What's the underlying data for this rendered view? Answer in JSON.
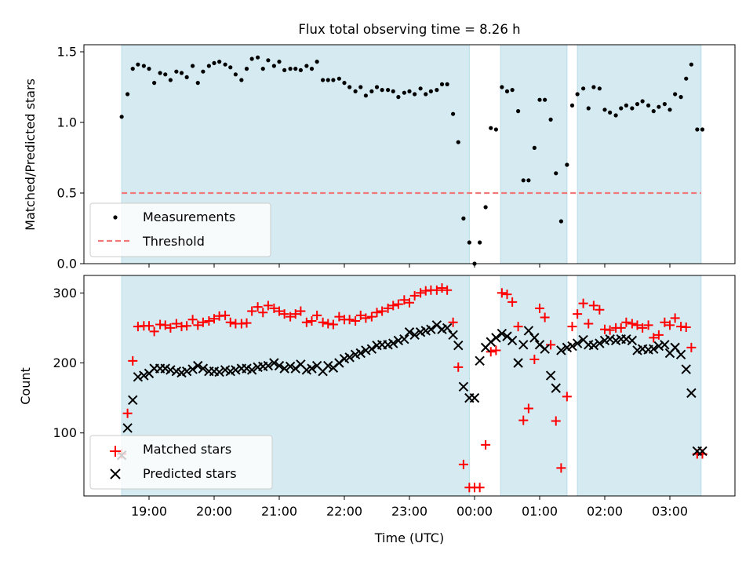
{
  "chart_data": [
    {
      "type": "scatter",
      "title": "Flux total observing time = 8.26 h",
      "ylabel": "Matched/Predicted stars",
      "ylim": [
        0,
        1.55
      ],
      "yticks": [
        0.0,
        0.5,
        1.0,
        1.5
      ],
      "ytick_labels": [
        "0.0",
        "0.5",
        "1.0",
        "1.5"
      ],
      "shaded_intervals_hours": [
        [
          18.58,
          23.92
        ],
        [
          24.4,
          25.42
        ],
        [
          25.58,
          27.48
        ]
      ],
      "threshold": {
        "name": "Threshold",
        "value": 0.5,
        "color": "#f07878"
      },
      "legend": [
        "Measurements",
        "Threshold"
      ],
      "legend_position": "lower-left",
      "series": [
        {
          "name": "Measurements",
          "color": "#000000",
          "marker": "dot",
          "x": [
            18.58,
            18.67,
            18.75,
            18.83,
            18.92,
            19.0,
            19.08,
            19.17,
            19.25,
            19.33,
            19.42,
            19.5,
            19.58,
            19.67,
            19.75,
            19.83,
            19.92,
            20.0,
            20.08,
            20.17,
            20.25,
            20.33,
            20.42,
            20.5,
            20.58,
            20.67,
            20.75,
            20.83,
            20.92,
            21.0,
            21.08,
            21.17,
            21.25,
            21.33,
            21.42,
            21.5,
            21.58,
            21.67,
            21.75,
            21.83,
            21.92,
            22.0,
            22.08,
            22.17,
            22.25,
            22.33,
            22.42,
            22.5,
            22.58,
            22.67,
            22.75,
            22.83,
            22.92,
            23.0,
            23.08,
            23.17,
            23.25,
            23.33,
            23.42,
            23.5,
            23.58,
            23.67,
            23.75,
            23.83,
            23.92,
            24.0,
            24.08,
            24.17,
            24.25,
            24.33,
            24.42,
            24.5,
            24.58,
            24.67,
            24.75,
            24.83,
            24.92,
            25.0,
            25.08,
            25.17,
            25.25,
            25.33,
            25.42,
            25.5,
            25.58,
            25.67,
            25.75,
            25.83,
            25.92,
            26.0,
            26.08,
            26.17,
            26.25,
            26.33,
            26.42,
            26.5,
            26.58,
            26.67,
            26.75,
            26.83,
            26.92,
            27.0,
            27.08,
            27.17,
            27.25,
            27.33,
            27.42,
            27.5
          ],
          "y": [
            1.04,
            1.2,
            1.38,
            1.41,
            1.4,
            1.38,
            1.28,
            1.35,
            1.34,
            1.3,
            1.36,
            1.35,
            1.32,
            1.4,
            1.28,
            1.36,
            1.4,
            1.42,
            1.43,
            1.41,
            1.39,
            1.34,
            1.3,
            1.38,
            1.45,
            1.46,
            1.38,
            1.44,
            1.4,
            1.43,
            1.37,
            1.38,
            1.38,
            1.37,
            1.4,
            1.38,
            1.43,
            1.3,
            1.3,
            1.3,
            1.31,
            1.28,
            1.25,
            1.22,
            1.25,
            1.19,
            1.22,
            1.25,
            1.23,
            1.23,
            1.22,
            1.18,
            1.21,
            1.22,
            1.2,
            1.24,
            1.2,
            1.22,
            1.23,
            1.27,
            1.27,
            1.06,
            0.86,
            0.32,
            0.15,
            0.0,
            0.15,
            0.4,
            0.96,
            0.95,
            1.25,
            1.22,
            1.23,
            1.08,
            0.59,
            0.59,
            0.82,
            1.16,
            1.16,
            1.02,
            0.64,
            0.3,
            0.7,
            1.12,
            1.2,
            1.24,
            1.1,
            1.25,
            1.24,
            1.09,
            1.07,
            1.05,
            1.1,
            1.12,
            1.1,
            1.13,
            1.15,
            1.12,
            1.08,
            1.11,
            1.13,
            1.09,
            1.2,
            1.18,
            1.31,
            1.41,
            0.95,
            0.95
          ]
        }
      ]
    },
    {
      "type": "scatter",
      "xlabel": "Time (UTC)",
      "ylabel": "Count",
      "xlim": [
        18.0,
        28.0
      ],
      "xticks_hours": [
        19,
        20,
        21,
        22,
        23,
        24,
        25,
        26,
        27
      ],
      "xtick_labels": [
        "19:00",
        "20:00",
        "21:00",
        "22:00",
        "23:00",
        "00:00",
        "01:00",
        "02:00",
        "03:00"
      ],
      "ylim": [
        10,
        325
      ],
      "yticks": [
        100,
        200,
        300
      ],
      "ytick_labels": [
        "100",
        "200",
        "300"
      ],
      "shaded_intervals_hours": [
        [
          18.58,
          23.92
        ],
        [
          24.4,
          25.42
        ],
        [
          25.58,
          27.48
        ]
      ],
      "legend": [
        "Matched stars",
        "Predicted stars"
      ],
      "legend_position": "lower-left",
      "series": [
        {
          "name": "Matched stars",
          "color": "#ff0000",
          "marker": "plus",
          "x": [
            18.58,
            18.67,
            18.75,
            18.83,
            18.92,
            19.0,
            19.08,
            19.17,
            19.25,
            19.33,
            19.42,
            19.5,
            19.58,
            19.67,
            19.75,
            19.83,
            19.92,
            20.0,
            20.08,
            20.17,
            20.25,
            20.33,
            20.42,
            20.5,
            20.58,
            20.67,
            20.75,
            20.83,
            20.92,
            21.0,
            21.08,
            21.17,
            21.25,
            21.33,
            21.42,
            21.5,
            21.58,
            21.67,
            21.75,
            21.83,
            21.92,
            22.0,
            22.08,
            22.17,
            22.25,
            22.33,
            22.42,
            22.5,
            22.58,
            22.67,
            22.75,
            22.83,
            22.92,
            23.0,
            23.08,
            23.17,
            23.25,
            23.33,
            23.42,
            23.5,
            23.58,
            23.67,
            23.75,
            23.83,
            23.92,
            24.0,
            24.08,
            24.17,
            24.25,
            24.33,
            24.42,
            24.5,
            24.58,
            24.67,
            24.75,
            24.83,
            24.92,
            25.0,
            25.08,
            25.17,
            25.25,
            25.33,
            25.42,
            25.5,
            25.58,
            25.67,
            25.75,
            25.83,
            25.92,
            26.0,
            26.08,
            26.17,
            26.25,
            26.33,
            26.42,
            26.5,
            26.58,
            26.67,
            26.75,
            26.83,
            26.92,
            27.0,
            27.08,
            27.17,
            27.25,
            27.33,
            27.42,
            27.5
          ],
          "y": [
            70,
            128,
            203,
            252,
            253,
            253,
            245,
            255,
            254,
            250,
            256,
            252,
            253,
            262,
            254,
            258,
            260,
            263,
            267,
            268,
            258,
            256,
            256,
            257,
            274,
            280,
            272,
            282,
            278,
            274,
            270,
            266,
            270,
            274,
            258,
            260,
            268,
            258,
            256,
            255,
            266,
            262,
            262,
            260,
            268,
            264,
            266,
            272,
            274,
            278,
            282,
            284,
            290,
            286,
            296,
            300,
            303,
            304,
            304,
            307,
            304,
            258,
            194,
            55,
            22,
            22,
            22,
            83,
            216,
            218,
            300,
            298,
            287,
            252,
            118,
            135,
            205,
            278,
            265,
            226,
            117,
            50,
            152,
            252,
            270,
            285,
            256,
            282,
            276,
            248,
            247,
            250,
            250,
            258,
            256,
            254,
            250,
            254,
            236,
            240,
            258,
            254,
            264,
            252,
            251,
            222,
            70,
            70
          ]
        },
        {
          "name": "Predicted stars",
          "color": "#000000",
          "marker": "x",
          "x": [
            18.58,
            18.67,
            18.75,
            18.83,
            18.92,
            19.0,
            19.08,
            19.17,
            19.25,
            19.33,
            19.42,
            19.5,
            19.58,
            19.67,
            19.75,
            19.83,
            19.92,
            20.0,
            20.08,
            20.17,
            20.25,
            20.33,
            20.42,
            20.5,
            20.58,
            20.67,
            20.75,
            20.83,
            20.92,
            21.0,
            21.08,
            21.17,
            21.25,
            21.33,
            21.42,
            21.5,
            21.58,
            21.67,
            21.75,
            21.83,
            21.92,
            22.0,
            22.08,
            22.17,
            22.25,
            22.33,
            22.42,
            22.5,
            22.58,
            22.67,
            22.75,
            22.83,
            22.92,
            23.0,
            23.08,
            23.17,
            23.25,
            23.33,
            23.42,
            23.5,
            23.58,
            23.67,
            23.75,
            23.83,
            23.92,
            24.0,
            24.08,
            24.17,
            24.25,
            24.33,
            24.42,
            24.5,
            24.58,
            24.67,
            24.75,
            24.83,
            24.92,
            25.0,
            25.08,
            25.17,
            25.25,
            25.33,
            25.42,
            25.5,
            25.58,
            25.67,
            25.75,
            25.83,
            25.92,
            26.0,
            26.08,
            26.17,
            26.25,
            26.33,
            26.42,
            26.5,
            26.58,
            26.67,
            26.75,
            26.83,
            26.92,
            27.0,
            27.08,
            27.17,
            27.25,
            27.33,
            27.42,
            27.5
          ],
          "y": [
            68,
            107,
            147,
            180,
            182,
            185,
            192,
            192,
            192,
            190,
            188,
            186,
            188,
            191,
            196,
            192,
            188,
            188,
            187,
            190,
            188,
            190,
            192,
            192,
            190,
            194,
            195,
            196,
            200,
            196,
            192,
            195,
            192,
            198,
            190,
            192,
            196,
            188,
            196,
            193,
            200,
            206,
            208,
            212,
            214,
            218,
            220,
            225,
            226,
            226,
            228,
            232,
            234,
            244,
            240,
            244,
            246,
            248,
            254,
            248,
            250,
            240,
            225,
            166,
            150,
            150,
            203,
            222,
            230,
            236,
            242,
            238,
            232,
            200,
            226,
            246,
            236,
            226,
            220,
            182,
            164,
            218,
            222,
            224,
            228,
            233,
            226,
            225,
            228,
            232,
            234,
            232,
            234,
            234,
            232,
            218,
            220,
            219,
            220,
            224,
            226,
            214,
            222,
            212,
            191,
            157,
            74,
            74
          ]
        }
      ]
    }
  ]
}
